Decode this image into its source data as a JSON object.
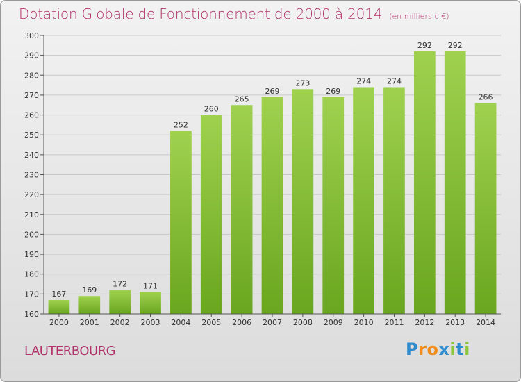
{
  "title": {
    "main": "Dotation Globale de Fonctionnement de 2000 à 2014",
    "unit": "(en milliers d'€)"
  },
  "commune": "LAUTERBOURG",
  "logo": {
    "text": "Proxiti",
    "letters": [
      "P",
      "r",
      "o",
      "x",
      "i",
      "t",
      "i"
    ]
  },
  "colors": {
    "bar_light": "#9fd14f",
    "bar_dark": "#6aa61f",
    "title": "#b0336a",
    "grid": "#c8c8c8"
  },
  "chart_data": {
    "type": "bar",
    "categories": [
      "2000",
      "2001",
      "2002",
      "2003",
      "2004",
      "2005",
      "2006",
      "2007",
      "2008",
      "2009",
      "2010",
      "2011",
      "2012",
      "2013",
      "2014"
    ],
    "values": [
      167,
      169,
      172,
      171,
      252,
      260,
      265,
      269,
      273,
      269,
      274,
      274,
      292,
      292,
      266
    ],
    "ylim": [
      160,
      300
    ],
    "yticks": [
      160,
      170,
      180,
      190,
      200,
      210,
      220,
      230,
      240,
      250,
      260,
      270,
      280,
      290,
      300
    ],
    "grid": true,
    "legend": "none",
    "xlabel": "",
    "ylabel": ""
  }
}
